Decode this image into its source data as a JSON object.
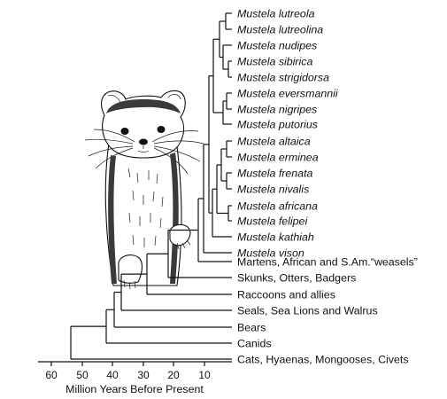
{
  "tree": {
    "taxa": [
      {
        "label": "Mustela lutreola",
        "italic": true
      },
      {
        "label": "Mustela lutreolina",
        "italic": true
      },
      {
        "label": "Mustela nudipes",
        "italic": true
      },
      {
        "label": "Mustela sibirica",
        "italic": true
      },
      {
        "label": "Mustela strigidorsa",
        "italic": true
      },
      {
        "label": "Mustela eversmannii",
        "italic": true
      },
      {
        "label": "Mustela nigripes",
        "italic": true
      },
      {
        "label": "Mustela putorius",
        "italic": true
      },
      {
        "label": "Mustela altaica",
        "italic": true
      },
      {
        "label": "Mustela erminea",
        "italic": true
      },
      {
        "label": "Mustela frenata",
        "italic": true
      },
      {
        "label": "Mustela nivalis",
        "italic": true
      },
      {
        "label": "Mustela africana",
        "italic": true
      },
      {
        "label": "Mustela felipei",
        "italic": true
      },
      {
        "label": "Mustela kathiah",
        "italic": true
      },
      {
        "label": "Mustela vison",
        "italic": true
      },
      {
        "label": "Martens, African and S.Am.“weasels”",
        "italic": false
      },
      {
        "label": "Skunks, Otters, Badgers",
        "italic": false
      },
      {
        "label": "Raccoons and allies",
        "italic": false
      },
      {
        "label": "Seals, Sea Lions and Walrus",
        "italic": false
      },
      {
        "label": "Bears",
        "italic": false
      },
      {
        "label": "Canids",
        "italic": false
      },
      {
        "label": "Cats, Hyaenas, Mongooses, Civets",
        "italic": false
      }
    ]
  },
  "axis": {
    "ticks": [
      "60",
      "50",
      "40",
      "30",
      "20",
      "10"
    ],
    "title": "Million Years Before Present"
  },
  "illustration": {
    "subject": "weasel-drawing"
  }
}
